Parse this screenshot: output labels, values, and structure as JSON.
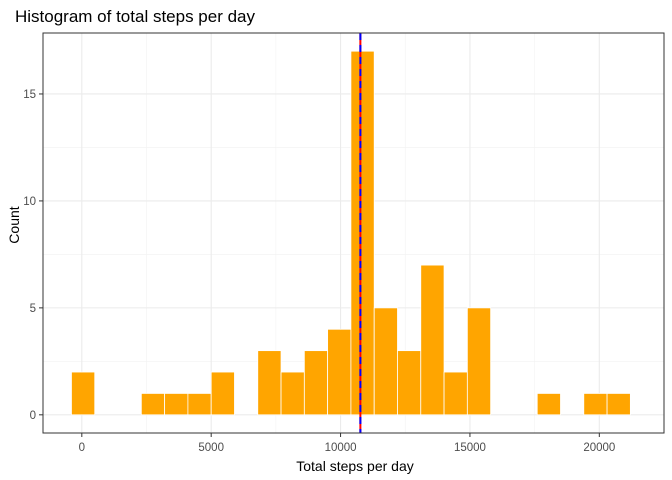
{
  "chart_data": {
    "type": "bar",
    "title": "Histogram of total steps per day",
    "xlabel": "Total steps per day",
    "ylabel": "Count",
    "bin_width": 900,
    "bins": [
      {
        "start": -400,
        "end": 500,
        "count": 2
      },
      {
        "start": 2300,
        "end": 3200,
        "count": 1
      },
      {
        "start": 3200,
        "end": 4100,
        "count": 1
      },
      {
        "start": 4100,
        "end": 5000,
        "count": 1
      },
      {
        "start": 5000,
        "end": 5900,
        "count": 2
      },
      {
        "start": 6800,
        "end": 7700,
        "count": 3
      },
      {
        "start": 7700,
        "end": 8600,
        "count": 2
      },
      {
        "start": 8600,
        "end": 9500,
        "count": 3
      },
      {
        "start": 9500,
        "end": 10400,
        "count": 4
      },
      {
        "start": 10400,
        "end": 11300,
        "count": 17
      },
      {
        "start": 11300,
        "end": 12200,
        "count": 5
      },
      {
        "start": 12200,
        "end": 13100,
        "count": 3
      },
      {
        "start": 13100,
        "end": 14000,
        "count": 7
      },
      {
        "start": 14000,
        "end": 14900,
        "count": 2
      },
      {
        "start": 14900,
        "end": 15800,
        "count": 5
      },
      {
        "start": 17600,
        "end": 18500,
        "count": 1
      },
      {
        "start": 19400,
        "end": 20300,
        "count": 1
      },
      {
        "start": 20300,
        "end": 21200,
        "count": 1
      }
    ],
    "xlim": [
      -1500,
      22500
    ],
    "ylim": [
      -0.85,
      17.85
    ],
    "xticks": [
      0,
      5000,
      10000,
      15000,
      20000
    ],
    "yticks": [
      0,
      5,
      10,
      15
    ],
    "reference_lines": [
      {
        "x": 10766,
        "color": "#ff0000",
        "style": "solid"
      },
      {
        "x": 10766,
        "color": "#0000ff",
        "style": "dashed"
      }
    ],
    "bar_fill": "#ffa500",
    "bar_border": "#ffffff",
    "grid": true,
    "legend": "none",
    "theme": "bw"
  }
}
